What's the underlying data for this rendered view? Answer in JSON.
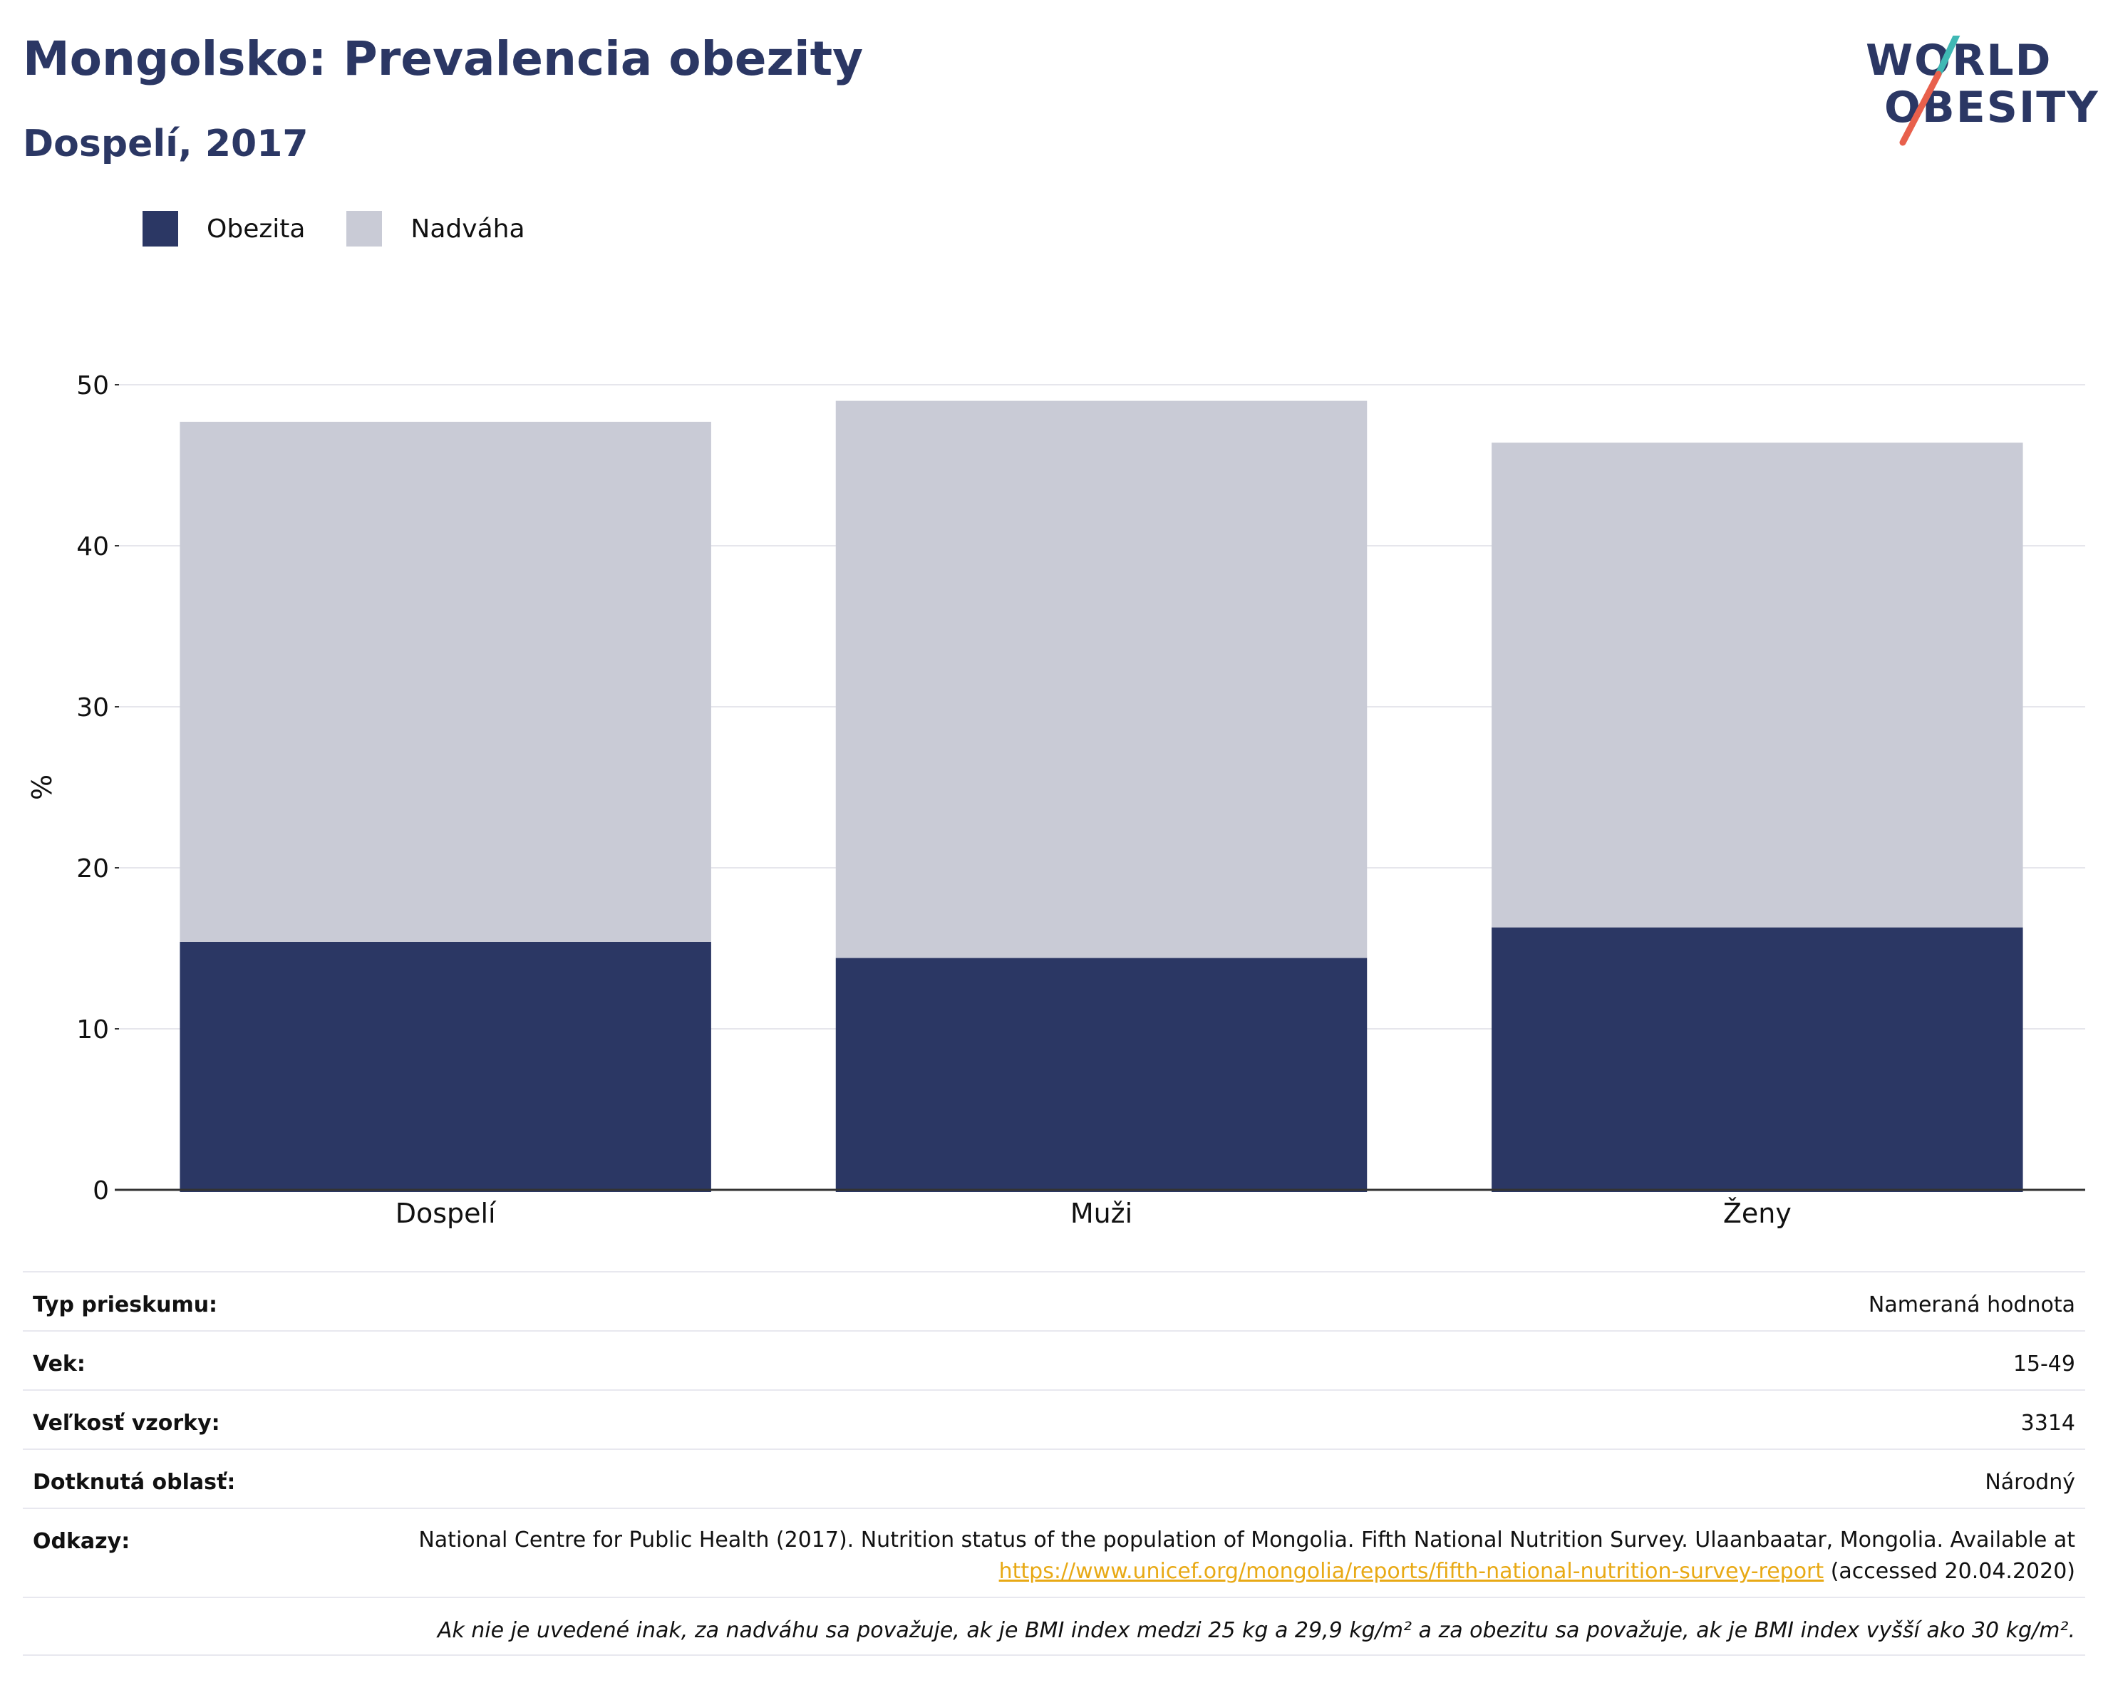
{
  "header": {
    "title": "Mongolsko: Prevalencia obezity",
    "subtitle": "Dospelí, 2017"
  },
  "logo": {
    "line1": "WORLD",
    "line2": "OBESITY"
  },
  "chart_data": {
    "type": "bar",
    "stacked": true,
    "categories": [
      "Dospelí",
      "Muži",
      "Ženy"
    ],
    "series": [
      {
        "name": "Obezita",
        "values": [
          15.4,
          14.4,
          16.3
        ],
        "color": "#2b3764"
      },
      {
        "name": "Nadváha",
        "values": [
          32.3,
          34.6,
          30.1
        ],
        "color": "#c9cbd6"
      }
    ],
    "ylabel": "%",
    "ylim": [
      0,
      50
    ],
    "yticks": [
      0,
      10,
      20,
      30,
      40,
      50
    ],
    "grid": true,
    "legend": "top-left"
  },
  "info": {
    "survey_type": {
      "label": "Typ prieskumu:",
      "value": "Nameraná hodnota"
    },
    "age": {
      "label": "Vek:",
      "value": "15-49"
    },
    "sample_size": {
      "label": "Veľkosť vzorky:",
      "value": "3314"
    },
    "area": {
      "label": "Dotknutá oblasť:",
      "value": "Národný"
    },
    "references": {
      "label": "Odkazy:",
      "text_before": "National Centre for Public Health (2017). Nutrition status of the population of Mongolia. Fifth National Nutrition Survey. Ulaanbaatar, Mongolia. Available at ",
      "link": "https://www.unicef.org/mongolia/reports/fifth-national-nutrition-survey-report",
      "text_after": " (accessed 20.04.2020)"
    },
    "footnote": "Ak nie je uvedené inak, za nadváhu sa považuje, ak je BMI index medzi 25 kg a 29,9 kg/m² a za obezitu sa považuje, ak je BMI index vyšší ako 30 kg/m²."
  }
}
